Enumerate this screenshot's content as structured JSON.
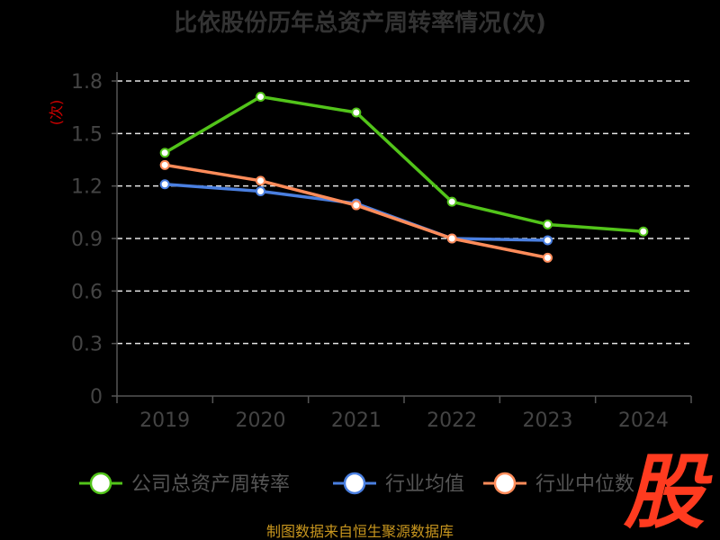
{
  "chart_data": {
    "type": "line",
    "title": "比依股份历年总资产周转率情况(次)",
    "ylabel": "(次)",
    "xlabel": "",
    "categories": [
      "2019",
      "2020",
      "2021",
      "2022",
      "2023",
      "2024"
    ],
    "ylim": [
      0,
      1.8
    ],
    "yticks": [
      "0",
      "0.3",
      "0.6",
      "0.9",
      "1.2",
      "1.5",
      "1.8"
    ],
    "grid": true,
    "legend_position": "bottom",
    "series": [
      {
        "name": "公司总资产周转率",
        "color": "#52c41a",
        "values": [
          1.39,
          1.71,
          1.62,
          1.11,
          0.98,
          0.94
        ]
      },
      {
        "name": "行业均值",
        "color": "#4a7fe0",
        "values": [
          1.21,
          1.17,
          1.1,
          0.9,
          0.89,
          null
        ]
      },
      {
        "name": "行业中位数",
        "color": "#ff8c5a",
        "values": [
          1.32,
          1.23,
          1.09,
          0.9,
          0.79,
          null
        ]
      }
    ]
  },
  "footer": {
    "source": "制图数据来自恒生聚源数据库"
  },
  "watermark": {
    "text": "股"
  }
}
